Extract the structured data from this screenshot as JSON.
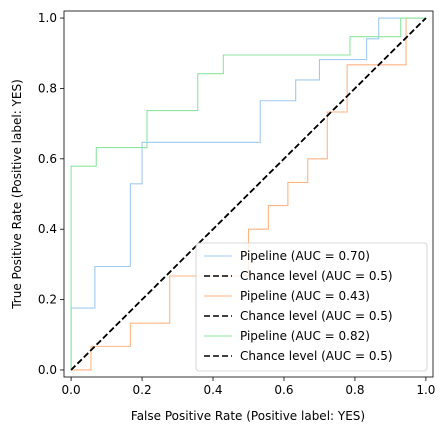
{
  "chart_data": {
    "type": "line",
    "xlabel": "False Positive Rate (Positive label: YES)",
    "ylabel": "True Positive Rate (Positive label: YES)",
    "xlim": [
      0,
      1
    ],
    "ylim": [
      0,
      1
    ],
    "x_ticks": [
      "0.0",
      "0.2",
      "0.4",
      "0.6",
      "0.8",
      "1.0"
    ],
    "y_ticks": [
      "0.0",
      "0.2",
      "0.4",
      "0.6",
      "0.8",
      "1.0"
    ],
    "grid": false,
    "legend_position": "lower-right",
    "series": [
      {
        "name": "Pipeline (AUC = 0.70)",
        "color": "#a1c9f4",
        "style": "solid",
        "x": [
          0,
          0,
          0.067,
          0.067,
          0.167,
          0.167,
          0.2,
          0.2,
          0.533,
          0.533,
          0.633,
          0.633,
          0.7,
          0.7,
          0.767,
          0.767,
          0.833,
          0.833,
          0.867,
          0.867,
          0.933,
          0.933,
          1.0
        ],
        "y": [
          0,
          0.176,
          0.176,
          0.294,
          0.294,
          0.529,
          0.529,
          0.647,
          0.647,
          0.765,
          0.765,
          0.824,
          0.824,
          0.882,
          0.882,
          0.882,
          0.882,
          0.941,
          0.941,
          1.0,
          1.0,
          1.0,
          1.0
        ]
      },
      {
        "name": "Chance level (AUC = 0.5)",
        "color": "#000000",
        "style": "dashed",
        "x": [
          0,
          1
        ],
        "y": [
          0,
          1
        ]
      },
      {
        "name": "Pipeline (AUC = 0.43)",
        "color": "#ffb482",
        "style": "solid",
        "x": [
          0,
          0.056,
          0.056,
          0.167,
          0.167,
          0.278,
          0.278,
          0.5,
          0.5,
          0.556,
          0.556,
          0.611,
          0.611,
          0.667,
          0.667,
          0.722,
          0.722,
          0.778,
          0.778,
          0.833,
          0.833,
          0.944,
          0.944,
          1.0
        ],
        "y": [
          0,
          0,
          0.067,
          0.067,
          0.133,
          0.133,
          0.267,
          0.267,
          0.4,
          0.4,
          0.467,
          0.467,
          0.533,
          0.533,
          0.6,
          0.6,
          0.733,
          0.733,
          0.867,
          0.867,
          0.867,
          0.867,
          1.0,
          1.0
        ]
      },
      {
        "name": "Chance level (AUC = 0.5)",
        "color": "#000000",
        "style": "dashed",
        "x": [
          0,
          1
        ],
        "y": [
          0,
          1
        ]
      },
      {
        "name": "Pipeline (AUC = 0.82)",
        "color": "#8de5a1",
        "style": "solid",
        "x": [
          0,
          0,
          0.071,
          0.071,
          0.214,
          0.214,
          0.357,
          0.357,
          0.429,
          0.429,
          0.786,
          0.786,
          0.929,
          0.929,
          1.0
        ],
        "y": [
          0,
          0.579,
          0.579,
          0.632,
          0.632,
          0.737,
          0.737,
          0.842,
          0.842,
          0.895,
          0.895,
          0.947,
          0.947,
          1.0,
          1.0
        ]
      },
      {
        "name": "Chance level (AUC = 0.5)",
        "color": "#000000",
        "style": "dashed",
        "x": [
          0,
          1
        ],
        "y": [
          0,
          1
        ]
      }
    ]
  }
}
